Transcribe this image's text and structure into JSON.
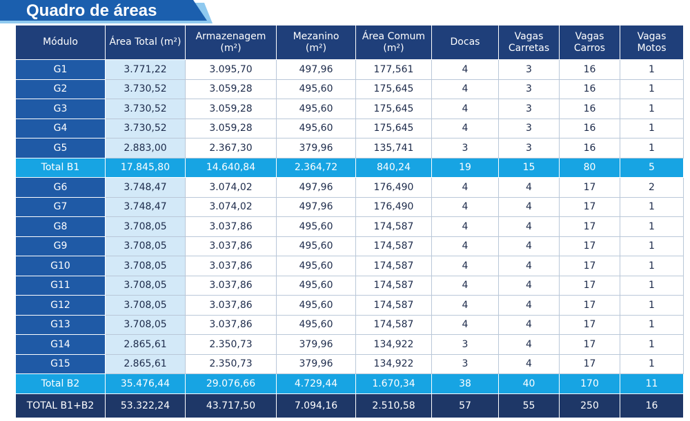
{
  "header": {
    "title": "Quadro de áreas"
  },
  "table": {
    "columns": [
      "Módulo",
      "Área Total (m²)",
      "Armazenagem\n(m²)",
      "Mezanino\n(m²)",
      "Área Comum\n(m²)",
      "Docas",
      "Vagas\nCarretas",
      "Vagas\nCarros",
      "Vagas\nMotos"
    ],
    "rows": [
      [
        "G1",
        "3.771,22",
        "3.095,70",
        "497,96",
        "177,561",
        "4",
        "3",
        "16",
        "1"
      ],
      [
        "G2",
        "3.730,52",
        "3.059,28",
        "495,60",
        "175,645",
        "4",
        "3",
        "16",
        "1"
      ],
      [
        "G3",
        "3.730,52",
        "3.059,28",
        "495,60",
        "175,645",
        "4",
        "3",
        "16",
        "1"
      ],
      [
        "G4",
        "3.730,52",
        "3.059,28",
        "495,60",
        "175,645",
        "4",
        "3",
        "16",
        "1"
      ],
      [
        "G5",
        "2.883,00",
        "2.367,30",
        "379,96",
        "135,741",
        "3",
        "3",
        "16",
        "1"
      ],
      [
        "Total B1",
        "17.845,80",
        "14.640,84",
        "2.364,72",
        "840,24",
        "19",
        "15",
        "80",
        "5"
      ],
      [
        "G6",
        "3.748,47",
        "3.074,02",
        "497,96",
        "176,490",
        "4",
        "4",
        "17",
        "2"
      ],
      [
        "G7",
        "3.748,47",
        "3.074,02",
        "497,96",
        "176,490",
        "4",
        "4",
        "17",
        "1"
      ],
      [
        "G8",
        "3.708,05",
        "3.037,86",
        "495,60",
        "174,587",
        "4",
        "4",
        "17",
        "1"
      ],
      [
        "G9",
        "3.708,05",
        "3.037,86",
        "495,60",
        "174,587",
        "4",
        "4",
        "17",
        "1"
      ],
      [
        "G10",
        "3.708,05",
        "3.037,86",
        "495,60",
        "174,587",
        "4",
        "4",
        "17",
        "1"
      ],
      [
        "G11",
        "3.708,05",
        "3.037,86",
        "495,60",
        "174,587",
        "4",
        "4",
        "17",
        "1"
      ],
      [
        "G12",
        "3.708,05",
        "3.037,86",
        "495,60",
        "174,587",
        "4",
        "4",
        "17",
        "1"
      ],
      [
        "G13",
        "3.708,05",
        "3.037,86",
        "495,60",
        "174,587",
        "4",
        "4",
        "17",
        "1"
      ],
      [
        "G14",
        "2.865,61",
        "2.350,73",
        "379,96",
        "134,922",
        "3",
        "4",
        "17",
        "1"
      ],
      [
        "G15",
        "2.865,61",
        "2.350,73",
        "379,96",
        "134,922",
        "3",
        "4",
        "17",
        "1"
      ],
      [
        "Total B2",
        "35.476,44",
        "29.076,66",
        "4.729,44",
        "1.670,34",
        "38",
        "40",
        "170",
        "11"
      ],
      [
        "TOTAL B1+B2",
        "53.322,24",
        "43.717,50",
        "7.094,16",
        "2.510,58",
        "57",
        "55",
        "250",
        "16"
      ]
    ]
  }
}
